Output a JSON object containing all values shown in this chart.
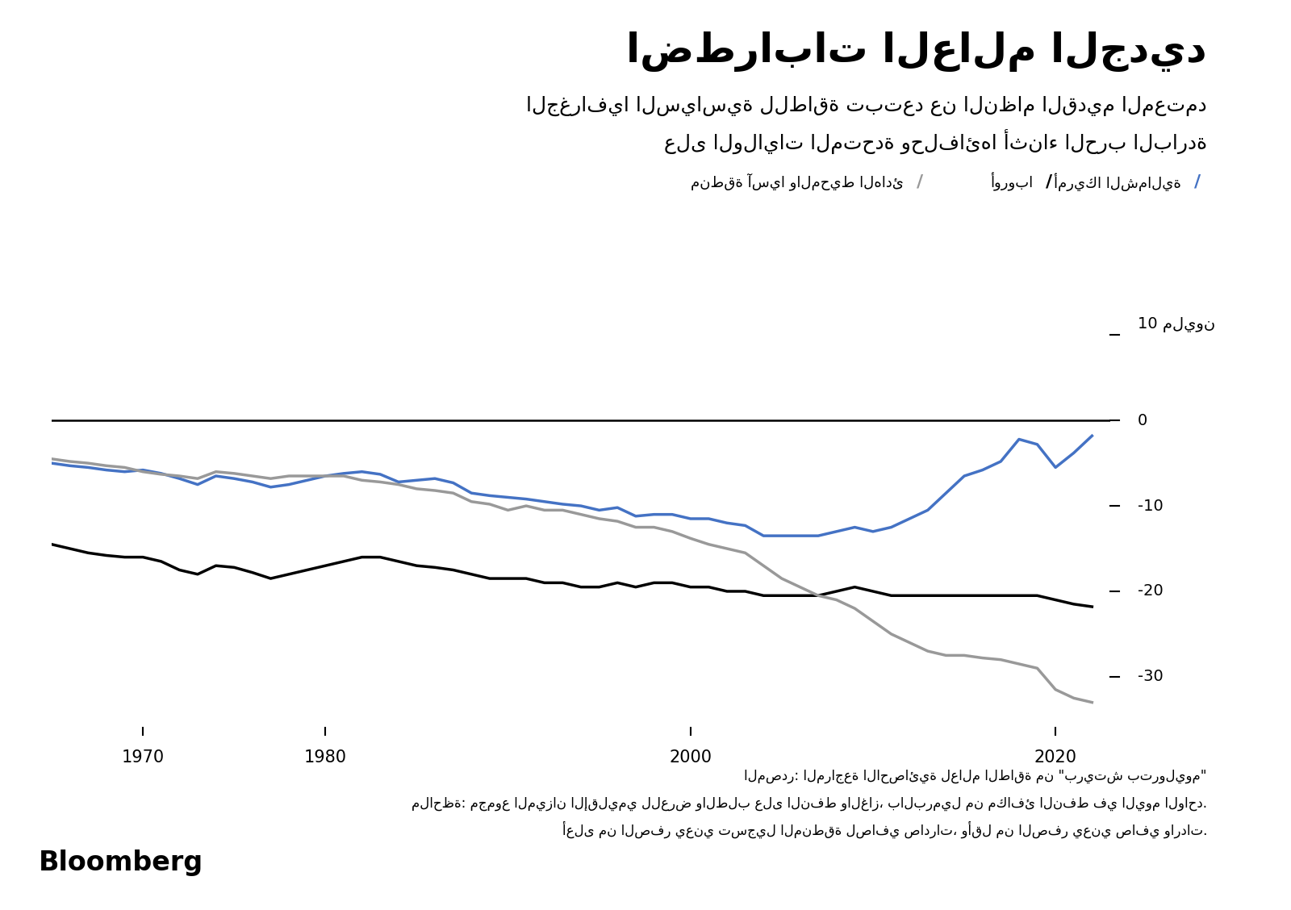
{
  "title": "اضطرابات العالم الجديد",
  "subtitle_line1": "الجغرافيا السياسية للطاقة تبتعد عن النظام القديم المعتمد",
  "subtitle_line2": "على الولايات المتحدة وحلفائها أثناء الحرب الباردة",
  "legend_na_label": "أمريكا الشمالية",
  "legend_eu_label": "أوروبا",
  "legend_ap_label": "منطقة آسيا والمحيط الهادئ",
  "ytick_top_label": "10 مليون",
  "yticks": [
    10,
    0,
    -10,
    -20,
    -30
  ],
  "xtick_labels": [
    "1970",
    "1980",
    "2000",
    "2020"
  ],
  "xtick_values": [
    1970,
    1980,
    2000,
    2020
  ],
  "source_text": "المصدر: المراجعة الاحصائية لعالم الطاقة من \"بريتش بتروليوم\"",
  "note_line1": "ملاحظة: مجموع الميزان الإقليمي للعرض والطلب على النفط والغاز، بالبرميل من مكافئ النفط في اليوم الواحد.",
  "note_line2": "أعلى من الصفر يعني تسجيل المنطقة لصافي صادرات، وأقل من الصفر يعني صافي واردات.",
  "bloomberg_label": "Bloomberg",
  "years": [
    1965,
    1966,
    1967,
    1968,
    1969,
    1970,
    1971,
    1972,
    1973,
    1974,
    1975,
    1976,
    1977,
    1978,
    1979,
    1980,
    1981,
    1982,
    1983,
    1984,
    1985,
    1986,
    1987,
    1988,
    1989,
    1990,
    1991,
    1992,
    1993,
    1994,
    1995,
    1996,
    1997,
    1998,
    1999,
    2000,
    2001,
    2002,
    2003,
    2004,
    2005,
    2006,
    2007,
    2008,
    2009,
    2010,
    2011,
    2012,
    2013,
    2014,
    2015,
    2016,
    2017,
    2018,
    2019,
    2020,
    2021,
    2022
  ],
  "north_america": [
    -5.0,
    -5.3,
    -5.5,
    -5.8,
    -6.0,
    -5.8,
    -6.2,
    -6.8,
    -7.5,
    -6.5,
    -6.8,
    -7.2,
    -7.8,
    -7.5,
    -7.0,
    -6.5,
    -6.2,
    -6.0,
    -6.3,
    -7.2,
    -7.0,
    -6.8,
    -7.3,
    -8.5,
    -8.8,
    -9.0,
    -9.2,
    -9.5,
    -9.8,
    -10.0,
    -10.5,
    -10.2,
    -11.2,
    -11.0,
    -11.0,
    -11.5,
    -11.5,
    -12.0,
    -12.3,
    -13.5,
    -13.5,
    -13.5,
    -13.5,
    -13.0,
    -12.5,
    -13.0,
    -12.5,
    -11.5,
    -10.5,
    -8.5,
    -6.5,
    -5.8,
    -4.8,
    -2.2,
    -2.8,
    -5.5,
    -3.8,
    -1.8
  ],
  "europe": [
    -14.5,
    -15.0,
    -15.5,
    -15.8,
    -16.0,
    -16.0,
    -16.5,
    -17.5,
    -18.0,
    -17.0,
    -17.2,
    -17.8,
    -18.5,
    -18.0,
    -17.5,
    -17.0,
    -16.5,
    -16.0,
    -16.0,
    -16.5,
    -17.0,
    -17.2,
    -17.5,
    -18.0,
    -18.5,
    -18.5,
    -18.5,
    -19.0,
    -19.0,
    -19.5,
    -19.5,
    -19.0,
    -19.5,
    -19.0,
    -19.0,
    -19.5,
    -19.5,
    -20.0,
    -20.0,
    -20.5,
    -20.5,
    -20.5,
    -20.5,
    -20.0,
    -19.5,
    -20.0,
    -20.5,
    -20.5,
    -20.5,
    -20.5,
    -20.5,
    -20.5,
    -20.5,
    -20.5,
    -20.5,
    -21.0,
    -21.5,
    -21.8
  ],
  "asia_pacific": [
    -4.5,
    -4.8,
    -5.0,
    -5.3,
    -5.5,
    -6.0,
    -6.3,
    -6.5,
    -6.8,
    -6.0,
    -6.2,
    -6.5,
    -6.8,
    -6.5,
    -6.5,
    -6.5,
    -6.5,
    -7.0,
    -7.2,
    -7.5,
    -8.0,
    -8.2,
    -8.5,
    -9.5,
    -9.8,
    -10.5,
    -10.0,
    -10.5,
    -10.5,
    -11.0,
    -11.5,
    -11.8,
    -12.5,
    -12.5,
    -13.0,
    -13.8,
    -14.5,
    -15.0,
    -15.5,
    -17.0,
    -18.5,
    -19.5,
    -20.5,
    -21.0,
    -22.0,
    -23.5,
    -25.0,
    -26.0,
    -27.0,
    -27.5,
    -27.5,
    -27.8,
    -28.0,
    -28.5,
    -29.0,
    -31.5,
    -32.5,
    -33.0
  ],
  "ylim": [
    -36,
    13
  ],
  "xlim": [
    1965,
    2023
  ],
  "background_color": "#ffffff",
  "line_color_na": "#4472C4",
  "line_color_eu": "#000000",
  "line_color_ap": "#999999",
  "line_width": 2.5
}
